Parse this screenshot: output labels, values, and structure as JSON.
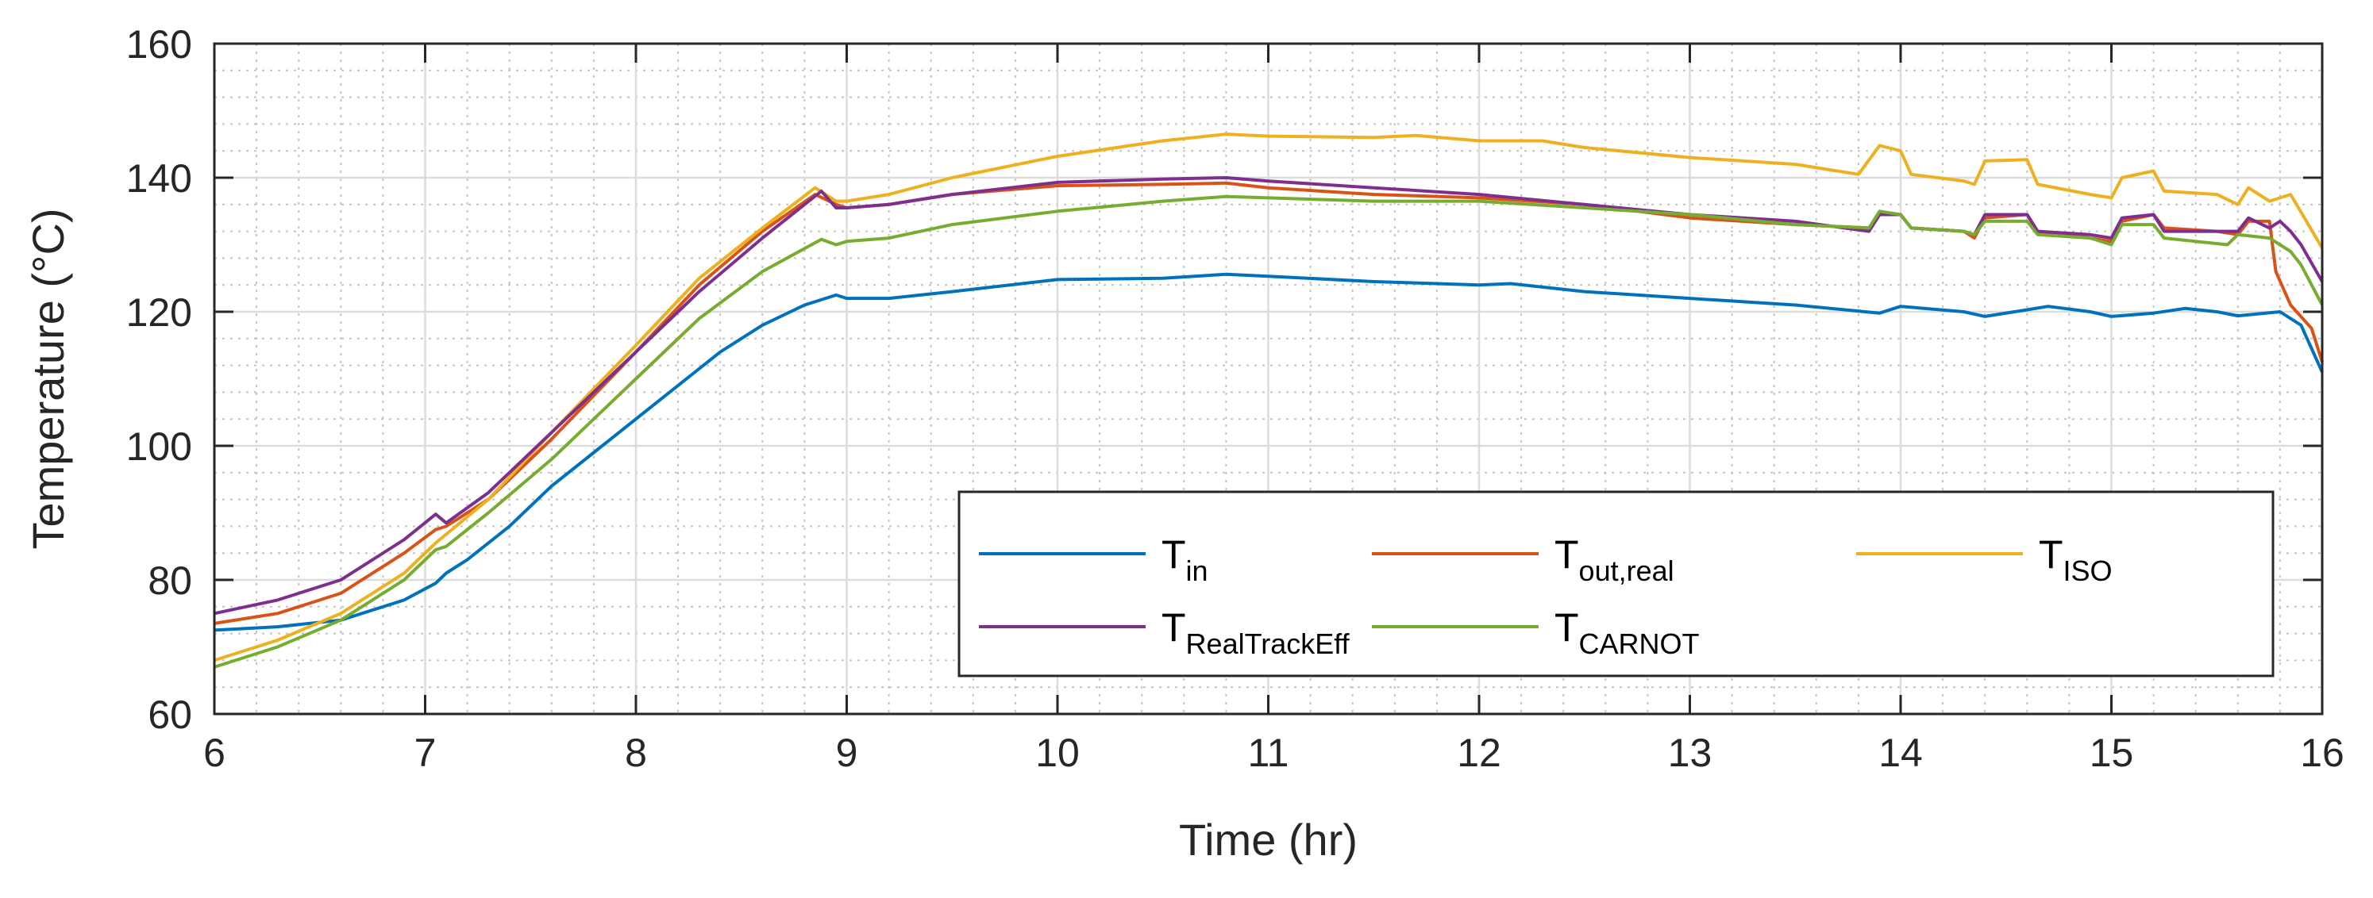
{
  "chart_data": {
    "type": "line",
    "title": "",
    "xlabel": "Time (hr)",
    "ylabel": "Temperature (°C)",
    "xlim": [
      6,
      16
    ],
    "ylim": [
      60,
      160
    ],
    "xticks": [
      6,
      7,
      8,
      9,
      10,
      11,
      12,
      13,
      14,
      15,
      16
    ],
    "yticks": [
      60,
      80,
      100,
      120,
      140,
      160
    ],
    "grid": true,
    "minor_grid": true,
    "legend_placement": "bottom-right",
    "legend_columns": 3,
    "series": [
      {
        "name": "T_in",
        "label_main": "T",
        "label_sub": "in",
        "color": "#0072BD",
        "points": [
          [
            6,
            72.5
          ],
          [
            6.3,
            73
          ],
          [
            6.6,
            74
          ],
          [
            6.9,
            77
          ],
          [
            7.05,
            79.5
          ],
          [
            7.1,
            81
          ],
          [
            7.2,
            83
          ],
          [
            7.4,
            88
          ],
          [
            7.6,
            94
          ],
          [
            7.8,
            99
          ],
          [
            8.0,
            104
          ],
          [
            8.2,
            109
          ],
          [
            8.4,
            114
          ],
          [
            8.6,
            118
          ],
          [
            8.8,
            121
          ],
          [
            8.95,
            122.5
          ],
          [
            9.0,
            122
          ],
          [
            9.2,
            122
          ],
          [
            9.5,
            123
          ],
          [
            10,
            124.8
          ],
          [
            10.5,
            125
          ],
          [
            10.8,
            125.6
          ],
          [
            11,
            125.3
          ],
          [
            11.5,
            124.5
          ],
          [
            12,
            124
          ],
          [
            12.15,
            124.2
          ],
          [
            12.5,
            123
          ],
          [
            13,
            122
          ],
          [
            13.5,
            121
          ],
          [
            13.9,
            119.8
          ],
          [
            14.0,
            120.8
          ],
          [
            14.3,
            120
          ],
          [
            14.4,
            119.3
          ],
          [
            14.6,
            120.3
          ],
          [
            14.7,
            120.8
          ],
          [
            14.9,
            120
          ],
          [
            15.0,
            119.3
          ],
          [
            15.2,
            119.8
          ],
          [
            15.35,
            120.5
          ],
          [
            15.5,
            120
          ],
          [
            15.6,
            119.4
          ],
          [
            15.8,
            120
          ],
          [
            15.9,
            118
          ],
          [
            16,
            111
          ]
        ]
      },
      {
        "name": "T_out,real",
        "label_main": "T",
        "label_sub": "out,real",
        "color": "#D95319",
        "points": [
          [
            6,
            73.5
          ],
          [
            6.3,
            75
          ],
          [
            6.6,
            78
          ],
          [
            6.9,
            84
          ],
          [
            7.05,
            87.5
          ],
          [
            7.1,
            88
          ],
          [
            7.3,
            92
          ],
          [
            7.6,
            101
          ],
          [
            8.0,
            114
          ],
          [
            8.3,
            124
          ],
          [
            8.6,
            132
          ],
          [
            8.85,
            137.5
          ],
          [
            8.95,
            136
          ],
          [
            9.0,
            135.5
          ],
          [
            9.2,
            136
          ],
          [
            9.5,
            137.5
          ],
          [
            10,
            138.8
          ],
          [
            10.5,
            139
          ],
          [
            10.8,
            139.2
          ],
          [
            11,
            138.5
          ],
          [
            11.5,
            137.5
          ],
          [
            12,
            137
          ],
          [
            12.5,
            136
          ],
          [
            13,
            134
          ],
          [
            13.5,
            133
          ],
          [
            13.85,
            132.5
          ],
          [
            13.9,
            134.8
          ],
          [
            14.0,
            134.5
          ],
          [
            14.05,
            132.5
          ],
          [
            14.3,
            132
          ],
          [
            14.35,
            131
          ],
          [
            14.4,
            134
          ],
          [
            14.6,
            134.5
          ],
          [
            14.65,
            132
          ],
          [
            14.8,
            131.5
          ],
          [
            14.9,
            131
          ],
          [
            15.0,
            130.5
          ],
          [
            15.05,
            133.5
          ],
          [
            15.2,
            134.5
          ],
          [
            15.25,
            132.5
          ],
          [
            15.5,
            132
          ],
          [
            15.6,
            131.5
          ],
          [
            15.65,
            133.5
          ],
          [
            15.75,
            133.5
          ],
          [
            15.78,
            126
          ],
          [
            15.85,
            121
          ],
          [
            15.95,
            117.5
          ],
          [
            16,
            112.5
          ]
        ]
      },
      {
        "name": "T_ISO",
        "label_main": "T",
        "label_sub": "ISO",
        "color": "#EDB120",
        "points": [
          [
            6,
            68
          ],
          [
            6.3,
            71
          ],
          [
            6.6,
            75
          ],
          [
            6.9,
            81
          ],
          [
            7.05,
            85.5
          ],
          [
            7.3,
            92
          ],
          [
            7.6,
            102
          ],
          [
            8.0,
            115
          ],
          [
            8.3,
            125
          ],
          [
            8.6,
            132.5
          ],
          [
            8.85,
            138.5
          ],
          [
            8.95,
            136.5
          ],
          [
            9.0,
            136.5
          ],
          [
            9.2,
            137.5
          ],
          [
            9.5,
            140
          ],
          [
            10,
            143.2
          ],
          [
            10.5,
            145.5
          ],
          [
            10.8,
            146.5
          ],
          [
            11,
            146.2
          ],
          [
            11.5,
            146
          ],
          [
            11.7,
            146.3
          ],
          [
            12,
            145.5
          ],
          [
            12.3,
            145.5
          ],
          [
            12.5,
            144.5
          ],
          [
            13,
            143
          ],
          [
            13.5,
            142
          ],
          [
            13.8,
            140.5
          ],
          [
            13.9,
            144.8
          ],
          [
            14.0,
            144
          ],
          [
            14.05,
            140.5
          ],
          [
            14.3,
            139.5
          ],
          [
            14.35,
            139
          ],
          [
            14.4,
            142.5
          ],
          [
            14.6,
            142.7
          ],
          [
            14.65,
            139
          ],
          [
            14.9,
            137.5
          ],
          [
            15.0,
            137
          ],
          [
            15.05,
            140
          ],
          [
            15.2,
            141
          ],
          [
            15.25,
            138
          ],
          [
            15.5,
            137.5
          ],
          [
            15.6,
            136
          ],
          [
            15.65,
            138.5
          ],
          [
            15.75,
            136.5
          ],
          [
            15.85,
            137.5
          ],
          [
            16,
            129.5
          ]
        ]
      },
      {
        "name": "T_RealTrackEff",
        "label_main": "T",
        "label_sub": "RealTrackEff",
        "color": "#7E2F8E",
        "points": [
          [
            6,
            75
          ],
          [
            6.3,
            77
          ],
          [
            6.6,
            80
          ],
          [
            6.9,
            86
          ],
          [
            7.05,
            89.8
          ],
          [
            7.1,
            88.5
          ],
          [
            7.3,
            93
          ],
          [
            7.6,
            102
          ],
          [
            8.0,
            114
          ],
          [
            8.3,
            123
          ],
          [
            8.6,
            131
          ],
          [
            8.88,
            138
          ],
          [
            8.95,
            135.5
          ],
          [
            9.0,
            135.5
          ],
          [
            9.2,
            136
          ],
          [
            9.5,
            137.5
          ],
          [
            10,
            139.3
          ],
          [
            10.5,
            139.8
          ],
          [
            10.8,
            140
          ],
          [
            11,
            139.5
          ],
          [
            11.5,
            138.5
          ],
          [
            12,
            137.5
          ],
          [
            12.5,
            136
          ],
          [
            13,
            134.5
          ],
          [
            13.5,
            133.5
          ],
          [
            13.85,
            132
          ],
          [
            13.9,
            134.5
          ],
          [
            14.0,
            134.5
          ],
          [
            14.05,
            132.5
          ],
          [
            14.3,
            132
          ],
          [
            14.35,
            131.5
          ],
          [
            14.4,
            134.5
          ],
          [
            14.6,
            134.5
          ],
          [
            14.65,
            132
          ],
          [
            14.9,
            131.5
          ],
          [
            15.0,
            131
          ],
          [
            15.05,
            134
          ],
          [
            15.2,
            134.5
          ],
          [
            15.25,
            132
          ],
          [
            15.6,
            132
          ],
          [
            15.65,
            134
          ],
          [
            15.75,
            132.5
          ],
          [
            15.8,
            133.5
          ],
          [
            15.85,
            132
          ],
          [
            15.9,
            130
          ],
          [
            16,
            124.5
          ]
        ]
      },
      {
        "name": "T_CARNOT",
        "label_main": "T",
        "label_sub": "CARNOT",
        "color": "#77AC30",
        "points": [
          [
            6,
            67
          ],
          [
            6.3,
            70
          ],
          [
            6.6,
            74
          ],
          [
            6.9,
            80
          ],
          [
            7.05,
            84.5
          ],
          [
            7.1,
            85
          ],
          [
            7.3,
            90
          ],
          [
            7.6,
            98
          ],
          [
            8.0,
            110
          ],
          [
            8.3,
            119
          ],
          [
            8.6,
            126
          ],
          [
            8.88,
            130.8
          ],
          [
            8.95,
            130
          ],
          [
            9.0,
            130.5
          ],
          [
            9.2,
            131
          ],
          [
            9.5,
            133
          ],
          [
            10,
            135
          ],
          [
            10.5,
            136.5
          ],
          [
            10.8,
            137.2
          ],
          [
            11,
            137
          ],
          [
            11.5,
            136.5
          ],
          [
            12,
            136.5
          ],
          [
            12.5,
            135.5
          ],
          [
            13,
            134.5
          ],
          [
            13.5,
            133
          ],
          [
            13.85,
            132.5
          ],
          [
            13.9,
            135
          ],
          [
            14.0,
            134.5
          ],
          [
            14.05,
            132.5
          ],
          [
            14.3,
            132
          ],
          [
            14.35,
            131.5
          ],
          [
            14.4,
            133.5
          ],
          [
            14.6,
            133.5
          ],
          [
            14.65,
            131.5
          ],
          [
            14.9,
            131
          ],
          [
            15.0,
            130
          ],
          [
            15.05,
            133
          ],
          [
            15.2,
            133
          ],
          [
            15.25,
            131
          ],
          [
            15.55,
            130
          ],
          [
            15.6,
            131.5
          ],
          [
            15.75,
            131
          ],
          [
            15.85,
            129
          ],
          [
            15.9,
            127
          ],
          [
            16,
            121
          ]
        ]
      }
    ]
  }
}
